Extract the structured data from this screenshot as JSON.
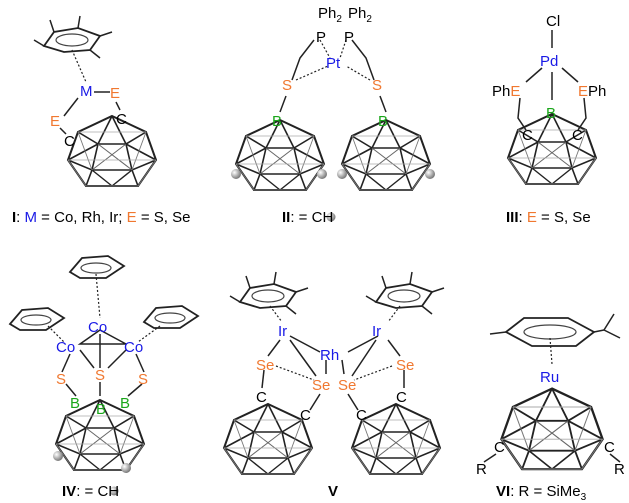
{
  "colors": {
    "metal": "#1a1ae6",
    "chalcogen": "#f07830",
    "boron": "#1aa61a",
    "carbon": "#000000",
    "bond": "#222222",
    "cage": "#555555",
    "ch_ball": "#9a9a9a"
  },
  "atoms": {
    "C": "C",
    "S": "S",
    "Se": "Se",
    "B": "B",
    "E": "E",
    "Co": "Co",
    "Rh": "Rh",
    "Ir": "Ir",
    "Pt": "Pt",
    "Pd": "Pd",
    "Ru": "Ru",
    "M": "M",
    "Cl": "Cl",
    "P": "P",
    "Ph": "Ph",
    "sub2": "2",
    "R": "R"
  },
  "captions": {
    "I": {
      "num": "I",
      "sep": ":",
      "m": "M",
      "rest": " = Co, Rh, Ir; ",
      "e": "E",
      "rest2": " = S, Se"
    },
    "II": {
      "num": "II",
      "rest": ":  = CH"
    },
    "III": {
      "num": "III",
      "sep": ": ",
      "e": "E",
      "rest": " = S, Se"
    },
    "IV": {
      "num": "IV",
      "rest": ":  = CH"
    },
    "V": {
      "num": "V"
    },
    "VI": {
      "num": "VI",
      "rest": ": R = SiMe",
      "sub": "3"
    }
  }
}
